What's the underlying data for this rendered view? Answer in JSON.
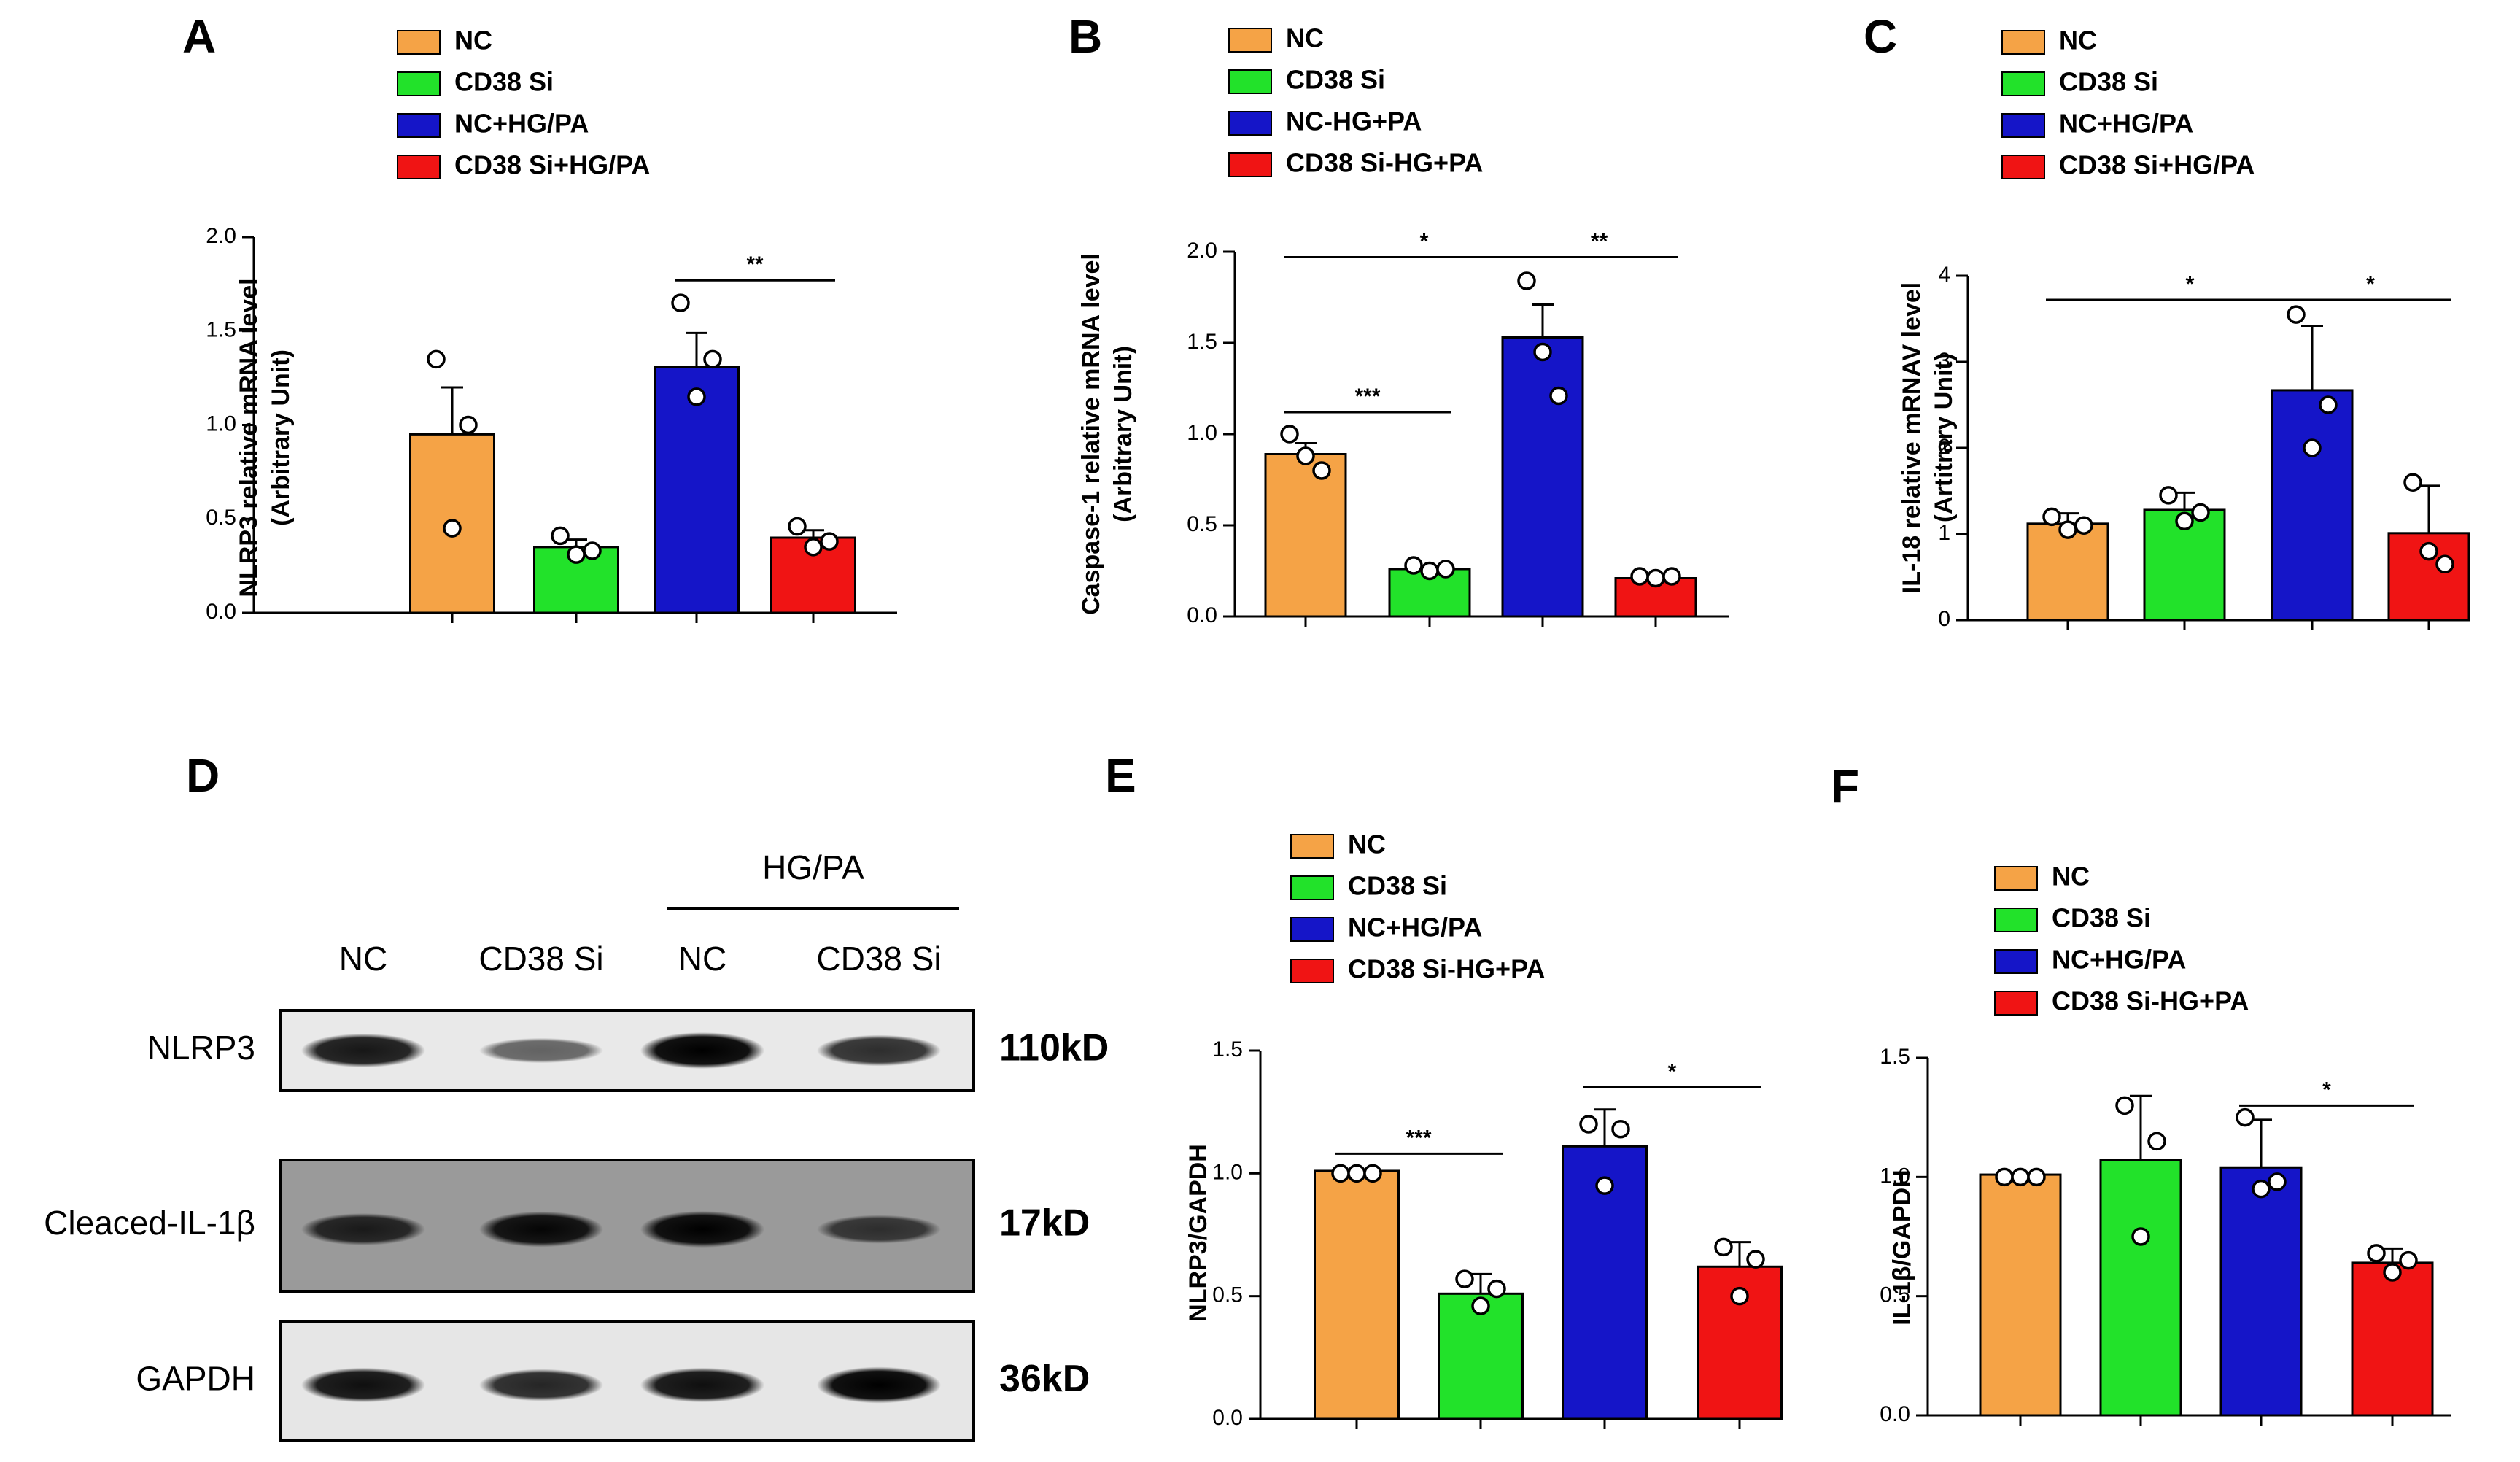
{
  "colors": {
    "nc": "#f5a346",
    "cd38si": "#22e22a",
    "nc_hgpa": "#1515c8",
    "cd38si_hgpa": "#f01414",
    "axis": "#000000"
  },
  "chart_data": [
    {
      "panel": "A",
      "type": "bar",
      "legend": [
        "NC",
        "CD38 Si",
        "NC+HG/PA",
        "CD38 Si+HG/PA"
      ],
      "ylabel": [
        "NLRP3 relative mRNA level",
        "(Arbitrary Unit)"
      ],
      "ylim": [
        0,
        2.0
      ],
      "yticks": [
        0.0,
        0.5,
        1.0,
        1.5,
        2.0
      ],
      "ytick_labels": [
        "0.0",
        "0.5",
        "1.0",
        "1.5",
        "2.0"
      ],
      "values": [
        0.95,
        0.35,
        1.31,
        0.4
      ],
      "errors": [
        0.25,
        0.04,
        0.18,
        0.04
      ],
      "points": [
        [
          1.35,
          0.45,
          1.0
        ],
        [
          0.41,
          0.31,
          0.33
        ],
        [
          1.65,
          1.15,
          1.35
        ],
        [
          0.46,
          0.35,
          0.38
        ]
      ],
      "significance": [
        {
          "from": 2,
          "to": 3,
          "label": "**",
          "y": 1.77
        }
      ]
    },
    {
      "panel": "B",
      "type": "bar",
      "legend": [
        "NC",
        "CD38 Si",
        "NC-HG+PA",
        "CD38 Si-HG+PA"
      ],
      "ylabel": [
        "Caspase-1 relative mRNA level",
        "(Arbitrary Unit)"
      ],
      "ylim": [
        0,
        2.0
      ],
      "yticks": [
        0.0,
        0.5,
        1.0,
        1.5,
        2.0
      ],
      "ytick_labels": [
        "0.0",
        "0.5",
        "1.0",
        "1.5",
        "2.0"
      ],
      "values": [
        0.89,
        0.26,
        1.53,
        0.21
      ],
      "errors": [
        0.06,
        0.01,
        0.18,
        0.01
      ],
      "points": [
        [
          1.0,
          0.88,
          0.8
        ],
        [
          0.28,
          0.25,
          0.26
        ],
        [
          1.84,
          1.45,
          1.21
        ],
        [
          0.22,
          0.21,
          0.22
        ]
      ],
      "significance": [
        {
          "from": 0,
          "to": 1,
          "label": "***",
          "y": 1.12
        },
        {
          "from": 0,
          "to": 2,
          "label": "*",
          "y": 1.97
        },
        {
          "from": 2,
          "to": 3,
          "label": "**",
          "y": 1.97
        }
      ]
    },
    {
      "panel": "C",
      "type": "bar",
      "legend": [
        "NC",
        "CD38 Si",
        "NC+HG/PA",
        "CD38 Si+HG/PA"
      ],
      "ylabel": [
        "IL-18  relative mRNAV  level",
        "(Artitrary Unit)"
      ],
      "ylim": [
        0,
        4
      ],
      "yticks": [
        0,
        1,
        2,
        3,
        4
      ],
      "ytick_labels": [
        "0",
        "1",
        "2",
        "3",
        "4"
      ],
      "values": [
        1.12,
        1.28,
        2.67,
        1.01
      ],
      "errors": [
        0.12,
        0.2,
        0.75,
        0.55
      ],
      "points": [
        [
          1.2,
          1.05,
          1.1
        ],
        [
          1.45,
          1.15,
          1.25
        ],
        [
          3.55,
          2.0,
          2.5
        ],
        [
          1.6,
          0.8,
          0.65
        ]
      ],
      "significance": [
        {
          "from": 0,
          "to": 2,
          "label": "*",
          "y": 3.72
        },
        {
          "from": 2,
          "to": 3,
          "label": "*",
          "y": 3.72
        }
      ]
    },
    {
      "panel": "E",
      "type": "bar",
      "legend": [
        "NC",
        "CD38 Si",
        "NC+HG/PA",
        "CD38 Si-HG+PA"
      ],
      "ylabel": [
        "NLRP3/GAPDH"
      ],
      "ylim": [
        0,
        1.5
      ],
      "yticks": [
        0.0,
        0.5,
        1.0,
        1.5
      ],
      "ytick_labels": [
        "0.0",
        "0.5",
        "1.0",
        "1.5"
      ],
      "values": [
        1.01,
        0.51,
        1.11,
        0.62
      ],
      "errors": [
        0.0,
        0.08,
        0.15,
        0.1
      ],
      "points": [
        [
          1.0,
          1.0,
          1.0
        ],
        [
          0.57,
          0.46,
          0.53
        ],
        [
          1.2,
          0.95,
          1.18
        ],
        [
          0.7,
          0.5,
          0.65
        ]
      ],
      "significance": [
        {
          "from": 0,
          "to": 1,
          "label": "***",
          "y": 1.08
        },
        {
          "from": 2,
          "to": 3,
          "label": "*",
          "y": 1.35
        }
      ]
    },
    {
      "panel": "F",
      "type": "bar",
      "legend": [
        "NC",
        "CD38 Si",
        "NC+HG/PA",
        "CD38 Si-HG+PA"
      ],
      "ylabel": [
        "IL-1β/GAPDH"
      ],
      "ylim": [
        0,
        1.5
      ],
      "yticks": [
        0.0,
        0.5,
        1.0,
        1.5
      ],
      "ytick_labels": [
        "0.0",
        "0.5",
        "1.0",
        "1.5"
      ],
      "values": [
        1.01,
        1.07,
        1.04,
        0.64
      ],
      "errors": [
        0.0,
        0.27,
        0.2,
        0.06
      ],
      "points": [
        [
          1.0,
          1.0,
          1.0
        ],
        [
          1.3,
          0.75,
          1.15
        ],
        [
          1.25,
          0.95,
          0.98
        ],
        [
          0.68,
          0.6,
          0.65
        ]
      ],
      "significance": [
        {
          "from": 2,
          "to": 3,
          "label": "*",
          "y": 1.3
        }
      ]
    }
  ],
  "panel_labels": {
    "A": "A",
    "B": "B",
    "C": "C",
    "D": "D",
    "E": "E",
    "F": "F"
  },
  "western_blot": {
    "treatment_label": "HG/PA",
    "lanes": [
      "NC",
      "CD38 Si",
      "NC",
      "CD38 Si"
    ],
    "rows": [
      {
        "label": "NLRP3",
        "size": "110kD",
        "intensities": [
          0.85,
          0.35,
          1.0,
          0.7
        ]
      },
      {
        "label": "Cleaced-IL-1β",
        "size": "17kD",
        "intensities": [
          0.75,
          0.95,
          1.0,
          0.55
        ]
      },
      {
        "label": "GAPDH",
        "size": "36kD",
        "intensities": [
          0.9,
          0.75,
          0.9,
          1.0
        ]
      }
    ]
  }
}
